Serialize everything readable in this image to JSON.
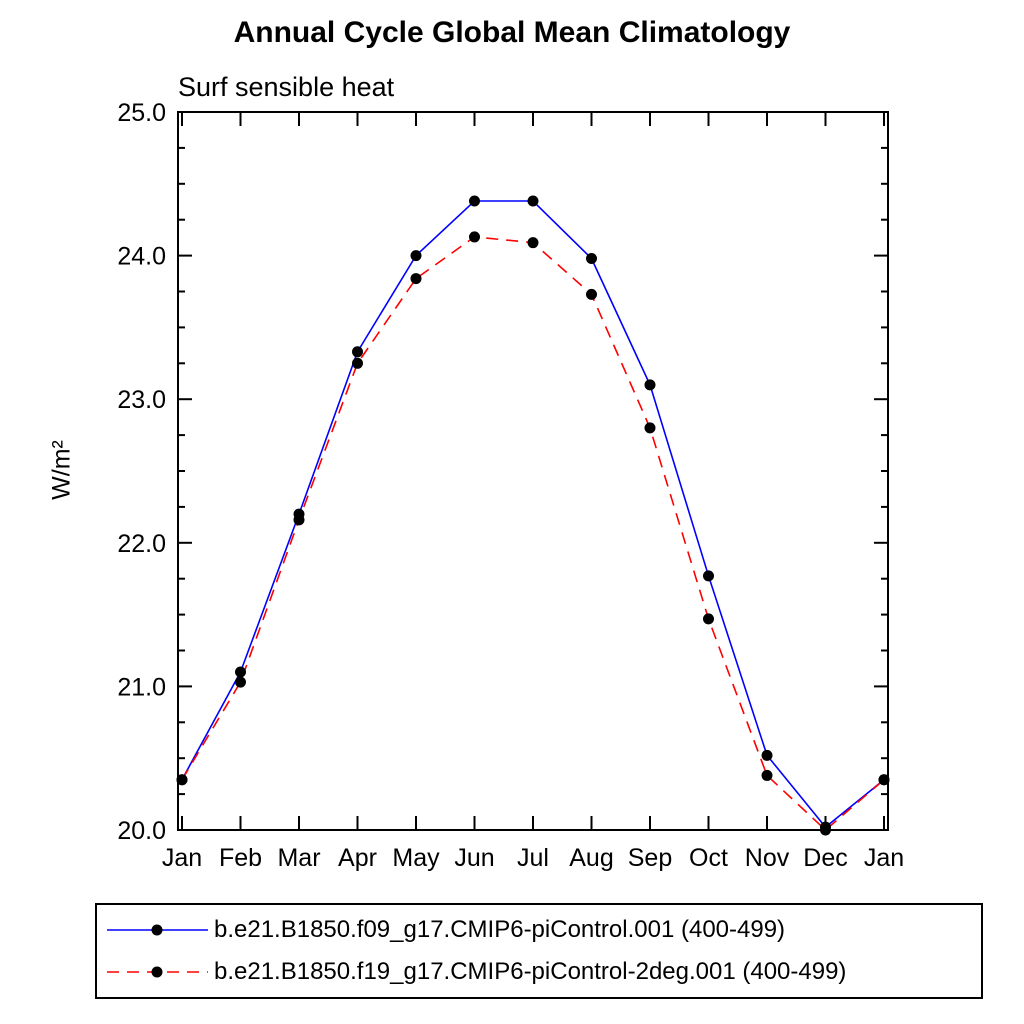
{
  "chart_data": {
    "type": "line",
    "title": "Annual Cycle Global Mean Climatology",
    "subtitle": "Surf sensible heat",
    "ylabel": "W/m²",
    "xlabel": "",
    "categories": [
      "Jan",
      "Feb",
      "Mar",
      "Apr",
      "May",
      "Jun",
      "Jul",
      "Aug",
      "Sep",
      "Oct",
      "Nov",
      "Dec",
      "Jan"
    ],
    "ylim": [
      20.0,
      25.0
    ],
    "ytick_interval": 1.0,
    "yminor_interval": 0.25,
    "ytick_labels": [
      "20.0",
      "21.0",
      "22.0",
      "23.0",
      "24.0",
      "25.0"
    ],
    "grid": false,
    "legend_position": "bottom",
    "axis_color": "#000000",
    "marker_color": "#000000",
    "series": [
      {
        "name": "b.e21.B1850.f09_g17.CMIP6-piControl.001 (400-499)",
        "color": "#0000ff",
        "line_style": "solid",
        "marker": "circle",
        "marker_color": "#000000",
        "values": [
          20.35,
          21.1,
          22.2,
          23.33,
          24.0,
          24.38,
          24.38,
          23.98,
          23.1,
          21.77,
          20.52,
          20.02,
          20.35
        ]
      },
      {
        "name": "b.e21.B1850.f19_g17.CMIP6-piControl-2deg.001 (400-499)",
        "color": "#ff0000",
        "line_style": "dashed",
        "marker": "circle",
        "marker_color": "#000000",
        "values": [
          20.35,
          21.03,
          22.16,
          23.25,
          23.84,
          24.13,
          24.09,
          23.73,
          22.8,
          21.47,
          20.38,
          20.0,
          20.35
        ]
      }
    ]
  }
}
